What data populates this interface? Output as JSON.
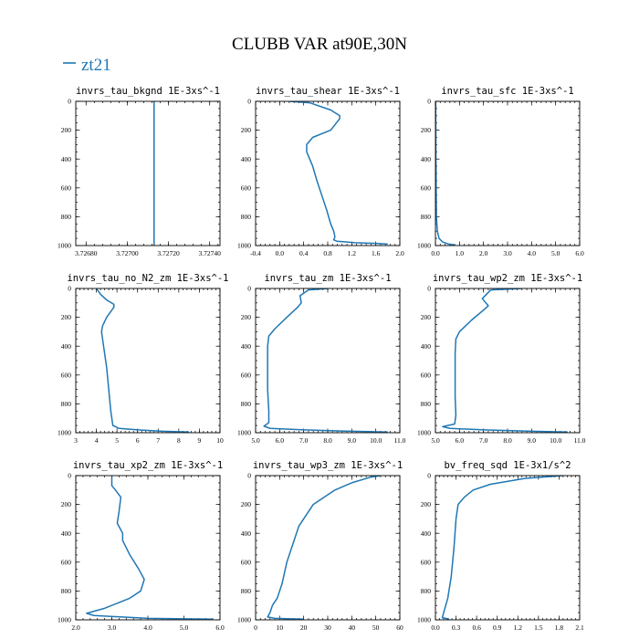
{
  "figure": {
    "title": "CLUBB VAR at90E,30N",
    "legend": {
      "label": "zt21",
      "color": "#1f77b4"
    }
  },
  "chart_data": [
    {
      "type": "line",
      "title": "invrs_tau_bkgnd",
      "units": "1E-3xs^-1",
      "xlim": [
        3.72675,
        3.72745
      ],
      "xticks": [
        3.7268,
        3.727,
        3.7272,
        3.7274
      ],
      "xtick_labels": [
        "3.72680",
        "3.72700",
        "3.72720",
        "3.72740"
      ],
      "ylim": [
        1000,
        0
      ],
      "yticks": [
        0,
        200,
        400,
        600,
        800,
        1000
      ],
      "series": [
        {
          "color": "#1f77b4",
          "x": [
            3.72713,
            3.72713
          ],
          "y": [
            0,
            1000
          ]
        }
      ]
    },
    {
      "type": "line",
      "title": "invrs_tau_shear",
      "units": "1E-3xs^-1",
      "xlim": [
        -0.4,
        2.0
      ],
      "xticks": [
        -0.4,
        0.0,
        0.4,
        0.8,
        1.2,
        1.6,
        2.0
      ],
      "xtick_labels": [
        "-0.4",
        "0.0",
        "0.4",
        "0.8",
        "1.2",
        "1.6",
        "2.0"
      ],
      "ylim": [
        1000,
        0
      ],
      "yticks": [
        0,
        200,
        400,
        600,
        800,
        1000
      ],
      "series": [
        {
          "color": "#1f77b4",
          "x": [
            0.17,
            0.5,
            0.85,
            1.0,
            1.0,
            0.85,
            0.55,
            0.45,
            0.45,
            0.55,
            0.62,
            0.7,
            0.78,
            0.85,
            0.9,
            0.92,
            0.9,
            0.95,
            1.25,
            1.6,
            1.8
          ],
          "y": [
            0,
            10,
            60,
            100,
            120,
            200,
            250,
            300,
            350,
            450,
            550,
            650,
            750,
            850,
            900,
            940,
            960,
            970,
            980,
            985,
            990
          ]
        }
      ]
    },
    {
      "type": "line",
      "title": "invrs_tau_sfc",
      "units": "1E-3xs^-1",
      "xlim": [
        0.0,
        6.0
      ],
      "xticks": [
        0,
        1,
        2,
        3,
        4,
        5,
        6
      ],
      "xtick_labels": [
        "0.0",
        "1.0",
        "2.0",
        "3.0",
        "4.0",
        "5.0",
        "6.0"
      ],
      "ylim": [
        1000,
        0
      ],
      "yticks": [
        0,
        200,
        400,
        600,
        800,
        1000
      ],
      "series": [
        {
          "color": "#1f77b4",
          "x": [
            0.01,
            0.02,
            0.04,
            0.08,
            0.15,
            0.3,
            0.55,
            0.8
          ],
          "y": [
            0,
            400,
            800,
            900,
            950,
            975,
            990,
            995
          ]
        }
      ]
    },
    {
      "type": "line",
      "title": "invrs_tau_no_N2_zm",
      "units": "1E-3xs^-1",
      "xlim": [
        3,
        10
      ],
      "xticks": [
        3,
        4,
        5,
        6,
        7,
        8,
        9,
        10
      ],
      "xtick_labels": [
        "3",
        "4",
        "5",
        "6",
        "7",
        "8",
        "9",
        "10"
      ],
      "ylim": [
        1000,
        0
      ],
      "yticks": [
        0,
        200,
        400,
        600,
        800,
        1000
      ],
      "series": [
        {
          "color": "#1f77b4",
          "x": [
            4.0,
            4.2,
            4.5,
            4.85,
            4.85,
            4.5,
            4.3,
            4.25,
            4.35,
            4.5,
            4.6,
            4.7,
            4.75,
            4.8,
            5.1,
            6.0,
            7.2,
            8.5
          ],
          "y": [
            0,
            40,
            80,
            110,
            130,
            200,
            260,
            300,
            400,
            550,
            700,
            850,
            900,
            950,
            970,
            980,
            990,
            995
          ]
        }
      ]
    },
    {
      "type": "line",
      "title": "invrs_tau_zm",
      "units": "1E-3xs^-1",
      "xlim": [
        5.0,
        11.0
      ],
      "xticks": [
        5,
        6,
        7,
        8,
        9,
        10,
        11
      ],
      "xtick_labels": [
        "5.0",
        "6.0",
        "7.0",
        "8.0",
        "9.0",
        "10.0",
        "11.0"
      ],
      "ylim": [
        1000,
        0
      ],
      "yticks": [
        0,
        200,
        400,
        600,
        800,
        1000
      ],
      "series": [
        {
          "color": "#1f77b4",
          "x": [
            8.0,
            7.2,
            6.85,
            6.9,
            6.75,
            6.3,
            5.8,
            5.55,
            5.5,
            5.5,
            5.5,
            5.55,
            5.55,
            5.35,
            5.6,
            7.0,
            9.0,
            10.5
          ],
          "y": [
            0,
            10,
            50,
            100,
            130,
            200,
            280,
            330,
            400,
            550,
            700,
            850,
            930,
            955,
            970,
            980,
            990,
            995
          ]
        }
      ]
    },
    {
      "type": "line",
      "title": "invrs_tau_wp2_zm",
      "units": "1E-3xs^-1",
      "xlim": [
        5.0,
        11.0
      ],
      "xticks": [
        5,
        6,
        7,
        8,
        9,
        10,
        11
      ],
      "xtick_labels": [
        "5.0",
        "6.0",
        "7.0",
        "8.0",
        "9.0",
        "10.0",
        "11.0"
      ],
      "ylim": [
        1000,
        0
      ],
      "yticks": [
        0,
        200,
        400,
        600,
        800,
        1000
      ],
      "series": [
        {
          "color": "#1f77b4",
          "x": [
            8.6,
            7.3,
            6.95,
            7.2,
            7.0,
            6.5,
            6.0,
            5.85,
            5.82,
            5.82,
            5.82,
            5.85,
            5.8,
            5.3,
            5.6,
            7.0,
            9.0,
            10.5
          ],
          "y": [
            0,
            10,
            70,
            120,
            150,
            220,
            300,
            350,
            450,
            600,
            750,
            880,
            940,
            958,
            970,
            980,
            990,
            995
          ]
        }
      ]
    },
    {
      "type": "line",
      "title": "invrs_tau_xp2_zm",
      "units": "1E-3xs^-1",
      "xlim": [
        2.0,
        6.0
      ],
      "xticks": [
        2,
        3,
        4,
        5,
        6
      ],
      "xtick_labels": [
        "2.0",
        "3.0",
        "4.0",
        "5.0",
        "6.0"
      ],
      "ylim": [
        1000,
        0
      ],
      "yticks": [
        0,
        200,
        400,
        600,
        800,
        1000
      ],
      "series": [
        {
          "color": "#1f77b4",
          "x": [
            3.0,
            3.0,
            3.1,
            3.25,
            3.2,
            3.15,
            3.3,
            3.3,
            3.5,
            3.75,
            3.9,
            3.8,
            3.5,
            2.8,
            2.3,
            2.5,
            4.0,
            5.8
          ],
          "y": [
            0,
            70,
            100,
            150,
            250,
            330,
            400,
            450,
            550,
            650,
            720,
            800,
            850,
            920,
            955,
            970,
            990,
            995
          ]
        }
      ]
    },
    {
      "type": "line",
      "title": "invrs_tau_wp3_zm",
      "units": "1E-3xs^-1",
      "xlim": [
        0,
        60
      ],
      "xticks": [
        0,
        10,
        20,
        30,
        40,
        50,
        60
      ],
      "xtick_labels": [
        "0",
        "10",
        "20",
        "30",
        "40",
        "50",
        "60"
      ],
      "ylim": [
        1000,
        0
      ],
      "yticks": [
        0,
        200,
        400,
        600,
        800,
        1000
      ],
      "series": [
        {
          "color": "#1f77b4",
          "x": [
            52,
            48,
            40,
            33,
            24,
            18,
            15,
            13,
            11,
            9,
            7,
            6,
            5,
            8,
            20
          ],
          "y": [
            0,
            10,
            50,
            100,
            200,
            350,
            500,
            600,
            750,
            850,
            900,
            950,
            980,
            990,
            995
          ]
        }
      ]
    },
    {
      "type": "line",
      "title": "bv_freq_sqd",
      "units": "1E-3x1/s^2",
      "xlim": [
        0.0,
        2.1
      ],
      "xticks": [
        0.0,
        0.3,
        0.6,
        0.9,
        1.2,
        1.5,
        1.8,
        2.1
      ],
      "xtick_labels": [
        "0.0",
        "0.3",
        "0.6",
        "0.9",
        "1.2",
        "1.5",
        "1.8",
        "2.1"
      ],
      "ylim": [
        1000,
        0
      ],
      "yticks": [
        0,
        200,
        400,
        600,
        800,
        1000
      ],
      "series": [
        {
          "color": "#1f77b4",
          "x": [
            1.85,
            1.3,
            0.8,
            0.55,
            0.42,
            0.33,
            0.3,
            0.27,
            0.23,
            0.18,
            0.12,
            0.1,
            0.2
          ],
          "y": [
            0,
            20,
            60,
            100,
            150,
            200,
            300,
            500,
            700,
            850,
            950,
            985,
            995
          ]
        }
      ]
    }
  ]
}
